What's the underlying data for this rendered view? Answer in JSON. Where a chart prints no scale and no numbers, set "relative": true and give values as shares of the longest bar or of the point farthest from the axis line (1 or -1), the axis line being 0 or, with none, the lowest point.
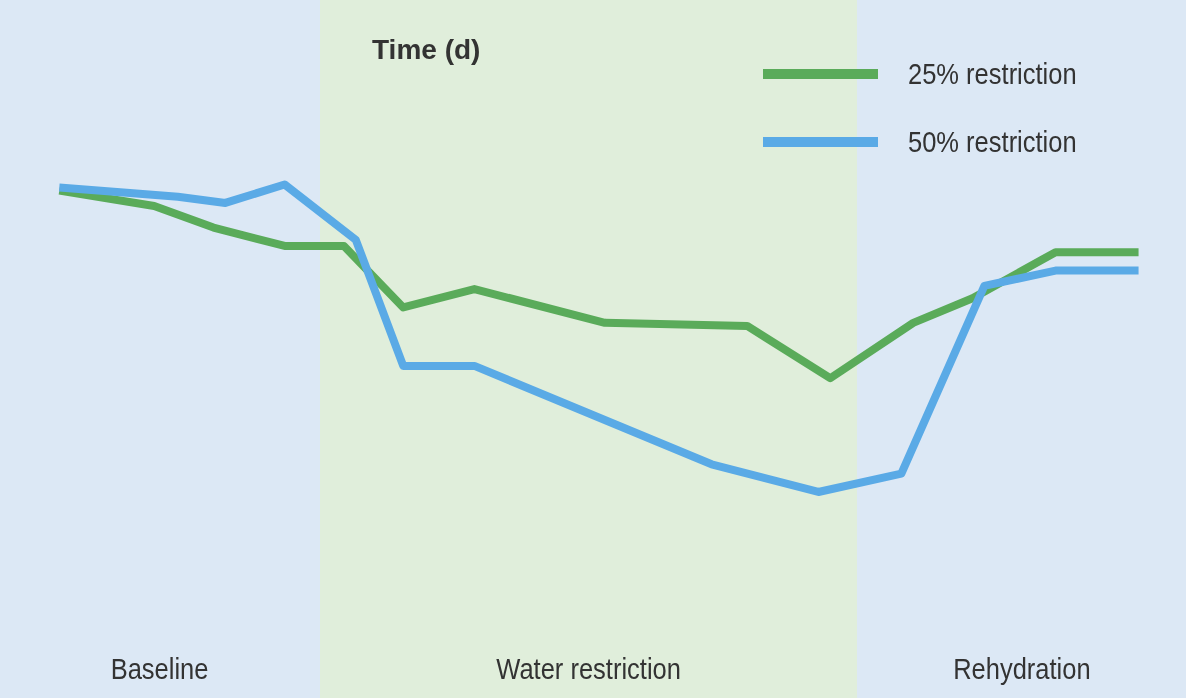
{
  "chart_data": {
    "type": "line",
    "xlabel": "Time (d)",
    "relative": true,
    "legend": "top right",
    "marker": "none",
    "line_style": "solid",
    "categories": [
      null,
      null,
      null,
      null,
      null,
      null,
      null,
      null,
      null,
      null,
      null,
      null,
      null,
      null,
      null,
      null,
      null,
      null,
      null,
      null,
      null,
      null,
      null,
      null,
      null,
      null,
      null,
      null,
      null,
      null,
      null,
      null,
      null,
      null,
      null,
      null,
      null,
      null,
      null,
      null,
      null,
      null,
      null,
      null,
      null,
      null,
      null,
      null,
      null,
      null,
      null,
      null,
      null,
      null,
      null,
      null,
      null,
      null,
      null,
      null,
      null,
      null,
      null,
      null,
      null,
      null,
      null,
      null,
      null,
      null,
      null,
      null,
      null,
      null,
      null,
      null,
      null,
      null,
      null,
      null,
      null,
      null,
      null,
      null,
      null,
      null,
      null,
      null,
      null,
      null,
      null,
      null,
      null,
      null,
      null,
      null,
      null,
      null,
      null,
      null,
      null
    ],
    "series": [
      {
        "name": "25% restriction",
        "color": "#5aab5a",
        "values": [
          null,
          null,
          null,
          null,
          null,
          0.98,
          null,
          null,
          null,
          null,
          null,
          null,
          null,
          0.93,
          null,
          null,
          null,
          null,
          0.86,
          null,
          null,
          null,
          null,
          null,
          0.8,
          null,
          null,
          null,
          null,
          0.8,
          null,
          null,
          null,
          null,
          0.6,
          null,
          null,
          null,
          null,
          null,
          0.66,
          null,
          null,
          null,
          null,
          null,
          null,
          null,
          null,
          null,
          null,
          0.55,
          null,
          null,
          null,
          null,
          null,
          null,
          null,
          null,
          null,
          null,
          null,
          0.54,
          null,
          null,
          null,
          null,
          null,
          null,
          0.37,
          null,
          null,
          null,
          null,
          null,
          null,
          0.55,
          null,
          null,
          null,
          null,
          0.63,
          null,
          null,
          null,
          null,
          null,
          null,
          0.78,
          null,
          null,
          null,
          null,
          null,
          null,
          0.78,
          null,
          null,
          null,
          null
        ]
      },
      {
        "name": "50% restriction",
        "color": "#5aaae6",
        "values": [
          null,
          null,
          null,
          null,
          null,
          0.99,
          null,
          null,
          null,
          null,
          null,
          null,
          null,
          null,
          null,
          0.96,
          null,
          null,
          null,
          0.94,
          null,
          null,
          null,
          null,
          1,
          null,
          null,
          null,
          null,
          null,
          0.82,
          null,
          null,
          null,
          0.41,
          null,
          null,
          null,
          null,
          null,
          0.41,
          null,
          null,
          null,
          null,
          null,
          null,
          null,
          null,
          null,
          null,
          null,
          null,
          null,
          null,
          null,
          null,
          null,
          null,
          null,
          0.09,
          null,
          null,
          null,
          null,
          null,
          null,
          null,
          null,
          0,
          null,
          null,
          null,
          null,
          null,
          null,
          0.06,
          null,
          null,
          null,
          null,
          null,
          null,
          0.67,
          null,
          null,
          null,
          null,
          null,
          0.72,
          null,
          null,
          null,
          null,
          null,
          null,
          0.72,
          null,
          null,
          null,
          null
        ]
      }
    ],
    "tick_labels": false,
    "annotations": [
      "Baseline",
      "Water restriction",
      "Rehydration"
    ]
  }
}
